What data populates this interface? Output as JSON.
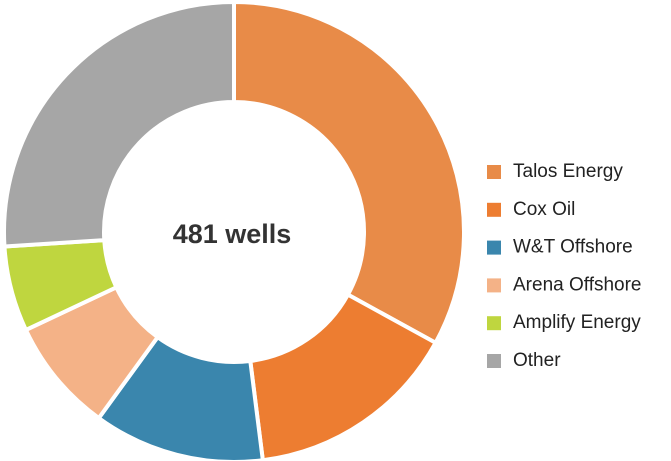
{
  "chart_data": {
    "type": "donut",
    "center_label": "481 wells",
    "categories": [
      "Talos Energy",
      "Cox Oil",
      "W&T Offshore",
      "Arena Offshore",
      "Amplify Energy",
      "Other"
    ],
    "values": [
      33,
      15,
      12,
      8,
      6,
      26
    ],
    "colors": [
      "#e88b48",
      "#ed7d31",
      "#3a86ad",
      "#f4b287",
      "#bfd63f",
      "#a6a6a6"
    ]
  }
}
